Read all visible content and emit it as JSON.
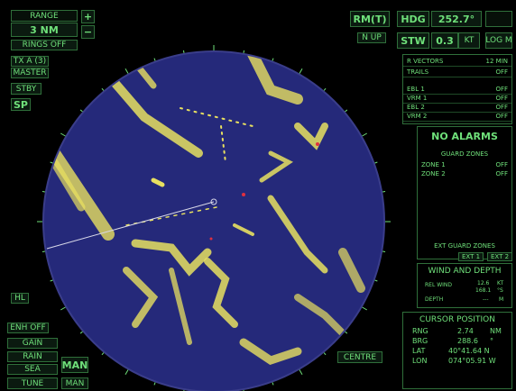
{
  "left": {
    "range_label": "RANGE",
    "range_value": "3 NM",
    "plus": "+",
    "minus": "−",
    "rings": "RINGS OFF",
    "tx": "TX A (3)",
    "master": "MASTER",
    "stby": "STBY",
    "sp": "SP",
    "hl": "HL",
    "enh": "ENH OFF",
    "gain": "GAIN",
    "rain": "RAIN",
    "sea": "SEA",
    "tune": "TUNE",
    "man1": "MAN",
    "man2": "MAN"
  },
  "top": {
    "mode": "RM(T)",
    "orientation": "N UP",
    "hdg_label": "HDG",
    "hdg_value": "252.7°",
    "stw_label": "STW",
    "stw_value": "0.3",
    "stw_unit": "KT",
    "log": "LOG M"
  },
  "vectors": {
    "header_left": "R VECTORS",
    "header_right": "12 MIN",
    "trails_label": "TRAILS",
    "trails_value": "OFF",
    "rows": [
      {
        "label": "EBL 1",
        "value": "OFF"
      },
      {
        "label": "VRM 1",
        "value": "OFF"
      },
      {
        "label": "EBL 2",
        "value": "OFF"
      },
      {
        "label": "VRM 2",
        "value": "OFF"
      }
    ]
  },
  "alarms": {
    "title": "NO ALARMS",
    "guard_title": "GUARD ZONES",
    "zones": [
      {
        "label": "ZONE 1",
        "value": "OFF"
      },
      {
        "label": "ZONE 2",
        "value": "OFF"
      }
    ],
    "ext_title": "EXT GUARD ZONES",
    "ext1": "EXT 1",
    "ext2": "EXT 2"
  },
  "wind": {
    "title": "WIND AND DEPTH",
    "rel_label": "REL WIND",
    "rel_value1": "12.6",
    "rel_unit": "KT",
    "rel_value2": "168.1",
    "rel_unit2": "°S",
    "depth_label": "DEPTH",
    "depth_value": "---",
    "depth_unit": "M"
  },
  "cursor": {
    "title": "CURSOR POSITION",
    "rows": [
      {
        "label": "RNG",
        "value": "2.74",
        "unit": "NM"
      },
      {
        "label": "BRG",
        "value": "288.6",
        "unit": "°"
      },
      {
        "label": "LAT",
        "value": "40°41.64 N",
        "unit": ""
      },
      {
        "label": "LON",
        "value": "074°05.91 W",
        "unit": ""
      }
    ]
  },
  "centre": "CENTRE",
  "colors": {
    "scope": "#25297a",
    "echo": "#e8e060",
    "text": "#6fe07a"
  }
}
